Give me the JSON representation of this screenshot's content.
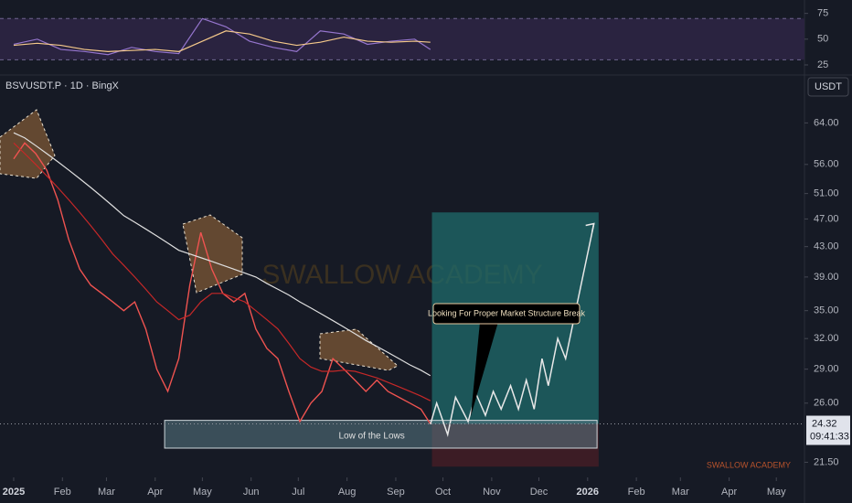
{
  "header": {
    "symbol": "BSVUSDT.P · 1D · BingX",
    "currency": "USDT"
  },
  "watermark": "SWALLOW ACADEMY",
  "footer_brand": "SWALLOW ACADEMY",
  "chart_data": [
    {
      "type": "line",
      "x": [
        0,
        15,
        30,
        45,
        60,
        75,
        90,
        105,
        120,
        135,
        150,
        165,
        180,
        195,
        210,
        225,
        240,
        255,
        265
      ],
      "series": [
        {
          "color": "#9575cd",
          "values": [
            45,
            50,
            40,
            38,
            35,
            42,
            38,
            36,
            70,
            62,
            48,
            42,
            38,
            58,
            55,
            45,
            48,
            50,
            40
          ]
        },
        {
          "color": "#f5c98a",
          "values": [
            44,
            46,
            44,
            40,
            38,
            39,
            40,
            38,
            48,
            58,
            55,
            48,
            44,
            47,
            52,
            48,
            47,
            48,
            47
          ]
        }
      ],
      "ylim": [
        17,
        88
      ],
      "yticks": [
        25,
        50,
        75
      ],
      "band": [
        30,
        70
      ],
      "xlim": [
        -8.7,
        502.9
      ]
    },
    {
      "type": "line",
      "log_scale": true,
      "xlim": [
        -8.7,
        502.9
      ],
      "ylim": [
        20.6,
        74
      ],
      "x": [
        0,
        7,
        14,
        21,
        28,
        35,
        42,
        49,
        56,
        63,
        70,
        77,
        84,
        91,
        98,
        105,
        112,
        119,
        126,
        133,
        140,
        147,
        154,
        161,
        168,
        175,
        182,
        189,
        196,
        203,
        210,
        217,
        224,
        231,
        238,
        245,
        252,
        259,
        265
      ],
      "series": [
        {
          "color": "#ef5350",
          "values": [
            57,
            60,
            58,
            55,
            50,
            44,
            40,
            38,
            37,
            36,
            35,
            36,
            33,
            29,
            27,
            30,
            38,
            45,
            40,
            37,
            36,
            37,
            33,
            31,
            30,
            27,
            24.5,
            26,
            27,
            30,
            29,
            28,
            27,
            28,
            27,
            26.5,
            26,
            25.5,
            24.32
          ]
        },
        {
          "color": "#e0e0e0",
          "values": [
            62,
            61,
            59.5,
            58,
            56.5,
            55,
            53.5,
            52,
            50.5,
            49,
            47.5,
            46.5,
            45.5,
            44.5,
            43.5,
            42.5,
            42,
            41.5,
            41,
            40.5,
            40,
            39.5,
            39,
            38.2,
            37.5,
            36.8,
            36,
            35.3,
            34.6,
            33.9,
            33.2,
            32.5,
            31.8,
            31.2,
            30.6,
            30,
            29.4,
            28.9,
            28.4
          ]
        },
        {
          "color": "#c62828",
          "values": [
            60,
            58,
            56,
            54,
            52,
            50,
            48,
            46,
            44,
            42,
            40.5,
            39,
            37.5,
            36,
            35,
            34,
            34.5,
            36,
            37,
            37,
            36.5,
            36,
            35,
            34,
            33,
            31.5,
            30,
            29.2,
            28.8,
            28.8,
            28.9,
            28.8,
            28.5,
            28.2,
            27.8,
            27.4,
            27,
            26.6,
            26.2
          ]
        }
      ],
      "yticks": [
        {
          "value": 64,
          "label": "64.00"
        },
        {
          "value": 56,
          "label": "56.00"
        },
        {
          "value": 51,
          "label": "51.00"
        },
        {
          "value": 47,
          "label": "47.00"
        },
        {
          "value": 43,
          "label": "43.00"
        },
        {
          "value": 39,
          "label": "39.00"
        },
        {
          "value": 35,
          "label": "35.00"
        },
        {
          "value": 32,
          "label": "32.00"
        },
        {
          "value": 29,
          "label": "29.00"
        },
        {
          "value": 26,
          "label": "26.00"
        },
        {
          "value": 21.5,
          "label": "21.50"
        }
      ],
      "xticks": [
        {
          "value": 0,
          "label": "2025"
        },
        {
          "value": 31,
          "label": "Feb"
        },
        {
          "value": 59,
          "label": "Mar"
        },
        {
          "value": 90,
          "label": "Apr"
        },
        {
          "value": 120,
          "label": "May"
        },
        {
          "value": 151,
          "label": "Jun"
        },
        {
          "value": 181,
          "label": "Jul"
        },
        {
          "value": 212,
          "label": "Aug"
        },
        {
          "value": 243,
          "label": "Sep"
        },
        {
          "value": 273,
          "label": "Oct"
        },
        {
          "value": 304,
          "label": "Nov"
        },
        {
          "value": 334,
          "label": "Dec"
        },
        {
          "value": 365,
          "label": "2026"
        },
        {
          "value": 396,
          "label": "Feb"
        },
        {
          "value": 424,
          "label": "Mar"
        },
        {
          "value": 455,
          "label": "Apr"
        },
        {
          "value": 485,
          "label": "May"
        }
      ],
      "last_price": {
        "value": 24.32,
        "label": "24.32"
      },
      "countdown": "09:41:33",
      "zone": {
        "label": "Low of the Lows",
        "x": [
          96,
          371
        ],
        "y": [
          22.5,
          24.6
        ]
      },
      "target_box": {
        "x": [
          266,
          372
        ],
        "y": [
          24.32,
          48
        ],
        "color": "#1f6b6b"
      },
      "stop_box": {
        "x": [
          266,
          372
        ],
        "y": [
          21.2,
          24.32
        ],
        "color": "#4a1e25"
      },
      "projection": {
        "color": "#e8e8e8",
        "x": [
          265,
          269,
          276,
          281,
          289,
          294,
          300,
          305,
          310,
          316,
          321,
          326,
          331,
          336,
          340,
          346,
          351,
          369
        ],
        "values": [
          24.3,
          26,
          23.5,
          26.5,
          24.5,
          26.8,
          25,
          27,
          25.5,
          27.5,
          25.5,
          28,
          25.5,
          30,
          27.5,
          32,
          30,
          46.3
        ]
      },
      "callout": "Looking For Proper Market Structure Break"
    }
  ]
}
